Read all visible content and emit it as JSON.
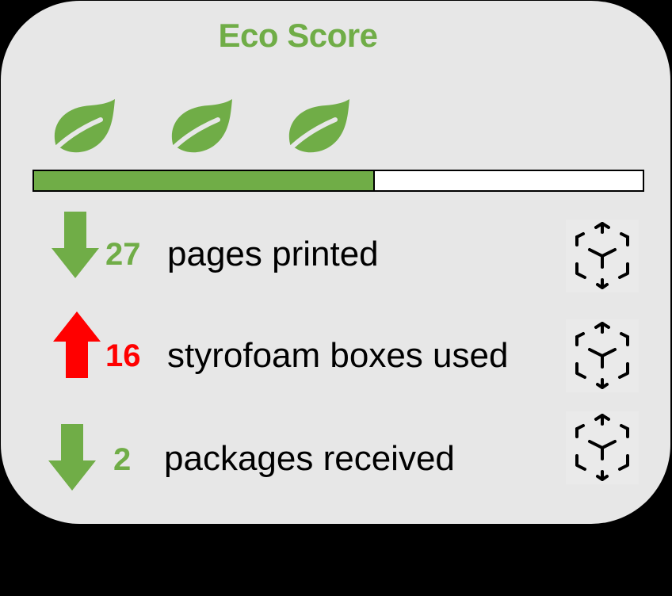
{
  "title": "Eco Score",
  "colors": {
    "green": "#70ad47",
    "red": "#ff0000",
    "card": "#e7e7e7"
  },
  "score": {
    "leaves": 3,
    "progress_fraction": 0.56
  },
  "metrics": [
    {
      "trend": "down",
      "value": "27",
      "label": "pages printed",
      "icon": "box-outline-icon"
    },
    {
      "trend": "up",
      "value": "16",
      "label": "styrofoam boxes used",
      "icon": "box-outline-icon"
    },
    {
      "trend": "down",
      "value": "2",
      "label": "packages received",
      "icon": "box-outline-icon"
    }
  ]
}
